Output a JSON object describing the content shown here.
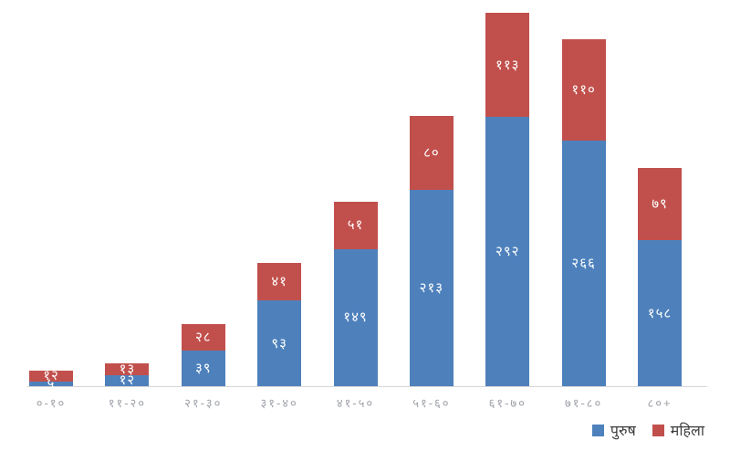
{
  "chart_data": {
    "type": "bar",
    "stacked": true,
    "title": "",
    "xlabel": "",
    "ylabel": "",
    "categories": [
      "०-१०",
      "११-२०",
      "२१-३०",
      "३१-४०",
      "४१-५०",
      "५१-६०",
      "६१-७०",
      "७१-८०",
      "८०+"
    ],
    "series": [
      {
        "name": "पुरुष",
        "color": "#4e81bc",
        "values": [
          5,
          12,
          39,
          93,
          149,
          213,
          292,
          266,
          158
        ],
        "labels": [
          "५",
          "१२",
          "३९",
          "९३",
          "१४९",
          "२१३",
          "२९२",
          "२६६",
          "१५८"
        ]
      },
      {
        "name": "महिला",
        "color": "#c1504c",
        "values": [
          12,
          13,
          28,
          41,
          51,
          80,
          113,
          110,
          79
        ],
        "labels": [
          "१२",
          "१३",
          "२८",
          "४१",
          "५१",
          "८०",
          "११३",
          "११०",
          "७९"
        ]
      }
    ],
    "value_label_color": "#ffffff",
    "axis_line_color": "#d6d6d6",
    "tick_label_color": "#9fa2a8",
    "legend_text_color": "#3d3d3d",
    "legend_position": "bottom-right",
    "ylim": [
      0,
      410
    ],
    "grid": false
  }
}
